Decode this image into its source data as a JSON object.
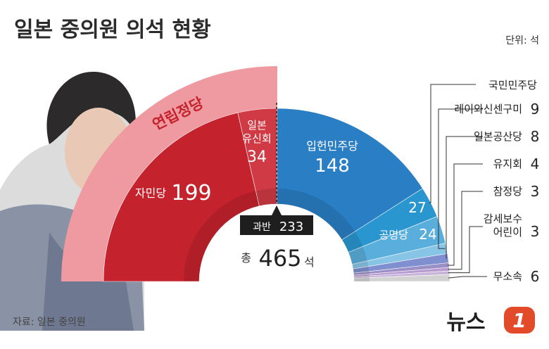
{
  "title": "일본 중의원 의석 현황",
  "unit": "단위: 석",
  "source": "자료: 일본 중의원",
  "logo": {
    "text": "뉴스",
    "mark": "1"
  },
  "coalition_label": "연립정당",
  "majority_label": "과반",
  "majority_value": 233,
  "total_prefix": "총",
  "total_value": 465,
  "total_suffix": "석",
  "colors": {
    "자민당": "#c4222d",
    "일본 유신회": "#d03a45",
    "입헌민주당": "#2a7ec4",
    "국민민주당": "#2a96d0",
    "공명당": "#5aaedc",
    "레이와신센구미": "#88c4e6",
    "일본공산당": "#7f8fd0",
    "유지회": "#9b8fc8",
    "참정당": "#b69ad0",
    "감세보수 어린이": "#c8b3da",
    "무소속": "#d2d2d2",
    "coalition": "#ef9aa0"
  },
  "chart_data": {
    "type": "pie",
    "variant": "half-donut",
    "total": 465,
    "majority": 233,
    "series": [
      {
        "label": "자민당",
        "value": 199
      },
      {
        "label": "일본 유신회",
        "value": 34
      },
      {
        "label": "입헌민주당",
        "value": 148
      },
      {
        "label": "국민민주당",
        "value": 27
      },
      {
        "label": "공명당",
        "value": 24
      },
      {
        "label": "레이와신센구미",
        "value": 9
      },
      {
        "label": "일본공산당",
        "value": 8
      },
      {
        "label": "유지회",
        "value": 4
      },
      {
        "label": "참정당",
        "value": 3
      },
      {
        "label": "감세보수 어린이",
        "value": 3
      },
      {
        "label": "무소속",
        "value": 6
      }
    ]
  }
}
